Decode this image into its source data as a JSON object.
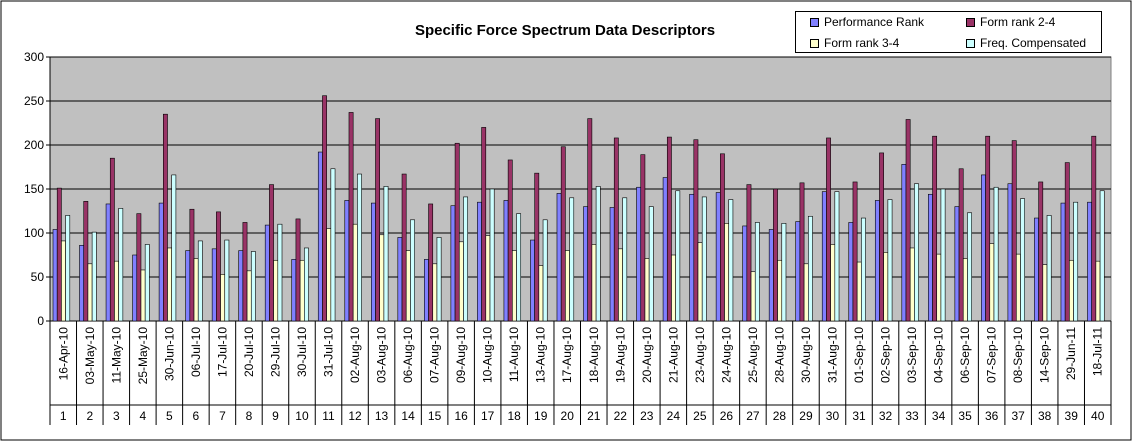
{
  "chart_data": {
    "type": "bar",
    "title": "Specific Force Spectrum Data Descriptors",
    "ylim": [
      0,
      300
    ],
    "yticks": [
      "0",
      "50",
      "100",
      "150",
      "200",
      "250",
      "300"
    ],
    "grid": true,
    "legend_position": "top-right",
    "dates": [
      "16-Apr-10",
      "03-May-10",
      "11-May-10",
      "25-May-10",
      "30-Jun-10",
      "06-Jul-10",
      "17-Jul-10",
      "20-Jul-10",
      "29-Jul-10",
      "30-Jul-10",
      "31-Jul-10",
      "02-Aug-10",
      "03-Aug-10",
      "06-Aug-10",
      "07-Aug-10",
      "09-Aug-10",
      "10-Aug-10",
      "11-Aug-10",
      "13-Aug-10",
      "17-Aug-10",
      "18-Aug-10",
      "19-Aug-10",
      "20-Aug-10",
      "21-Aug-10",
      "23-Aug-10",
      "24-Aug-10",
      "25-Aug-10",
      "28-Aug-10",
      "30-Aug-10",
      "31-Aug-10",
      "01-Sep-10",
      "02-Sep-10",
      "03-Sep-10",
      "04-Sep-10",
      "06-Sep-10",
      "07-Sep-10",
      "08-Sep-10",
      "14-Sep-10",
      "29-Jun-11",
      "18-Jul-11"
    ],
    "categories": [
      "1",
      "2",
      "3",
      "4",
      "5",
      "6",
      "7",
      "8",
      "9",
      "10",
      "11",
      "12",
      "13",
      "14",
      "15",
      "16",
      "17",
      "18",
      "19",
      "20",
      "21",
      "22",
      "23",
      "24",
      "25",
      "26",
      "27",
      "28",
      "29",
      "30",
      "31",
      "32",
      "33",
      "34",
      "35",
      "36",
      "37",
      "38",
      "39",
      "40"
    ],
    "series": [
      {
        "name": "Performance Rank",
        "color": "#8080ff",
        "values": [
          104,
          86,
          133,
          75,
          134,
          80,
          82,
          80,
          109,
          70,
          192,
          137,
          134,
          95,
          70,
          131,
          135,
          137,
          92,
          145,
          130,
          129,
          152,
          163,
          144,
          146,
          108,
          104,
          113,
          147,
          112,
          137,
          178,
          144,
          130,
          166,
          156,
          117,
          134,
          135
        ]
      },
      {
        "name": "Form rank 2-4",
        "color": "#993366",
        "values": [
          151,
          136,
          185,
          122,
          235,
          127,
          124,
          112,
          155,
          116,
          256,
          237,
          230,
          167,
          133,
          202,
          220,
          183,
          168,
          198,
          230,
          208,
          189,
          209,
          206,
          190,
          155,
          150,
          157,
          208,
          158,
          191,
          229,
          210,
          173,
          210,
          205,
          158,
          180,
          210
        ]
      },
      {
        "name": "Form rank 3-4",
        "color": "#ffffcc",
        "values": [
          91,
          65,
          68,
          58,
          83,
          71,
          53,
          57,
          69,
          69,
          105,
          110,
          98,
          80,
          65,
          90,
          97,
          80,
          63,
          80,
          87,
          82,
          71,
          75,
          89,
          111,
          56,
          69,
          65,
          87,
          67,
          78,
          83,
          76,
          71,
          88,
          76,
          64,
          69,
          68
        ]
      },
      {
        "name": "Freq. Compensated",
        "color": "#ccffff",
        "values": [
          120,
          101,
          128,
          87,
          166,
          91,
          92,
          79,
          110,
          83,
          173,
          167,
          153,
          115,
          95,
          141,
          150,
          122,
          115,
          140,
          153,
          140,
          130,
          148,
          141,
          138,
          112,
          111,
          119,
          147,
          117,
          138,
          156,
          150,
          123,
          152,
          139,
          120,
          135,
          148
        ]
      }
    ]
  }
}
